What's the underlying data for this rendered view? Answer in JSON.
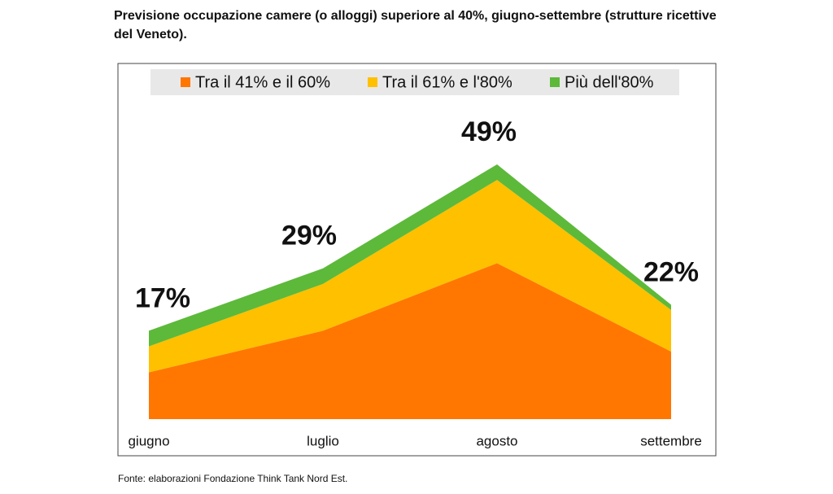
{
  "chart_data": {
    "type": "stacked_area",
    "title": "Previsione occupazione camere (o alloggi) superiore al 40%, giugno-settembre (strutture ricettive del Veneto).",
    "categories": [
      "giugno",
      "luglio",
      "agosto",
      "settembre"
    ],
    "series": [
      {
        "name": "Tra il 41% e il 60%",
        "color": "#ff7700",
        "values": [
          9,
          17,
          30,
          13
        ]
      },
      {
        "name": "Tra il 61% e l'80%",
        "color": "#ffc000",
        "values": [
          5,
          9,
          16,
          8
        ]
      },
      {
        "name": "Più dell'80%",
        "color": "#5db93a",
        "values": [
          3,
          3,
          3,
          1
        ]
      }
    ],
    "totals": [
      17,
      29,
      49,
      22
    ],
    "total_labels": [
      "17%",
      "29%",
      "49%",
      "22%"
    ],
    "legend": "top",
    "source": "Fonte: elaborazioni Fondazione Think Tank Nord Est."
  }
}
